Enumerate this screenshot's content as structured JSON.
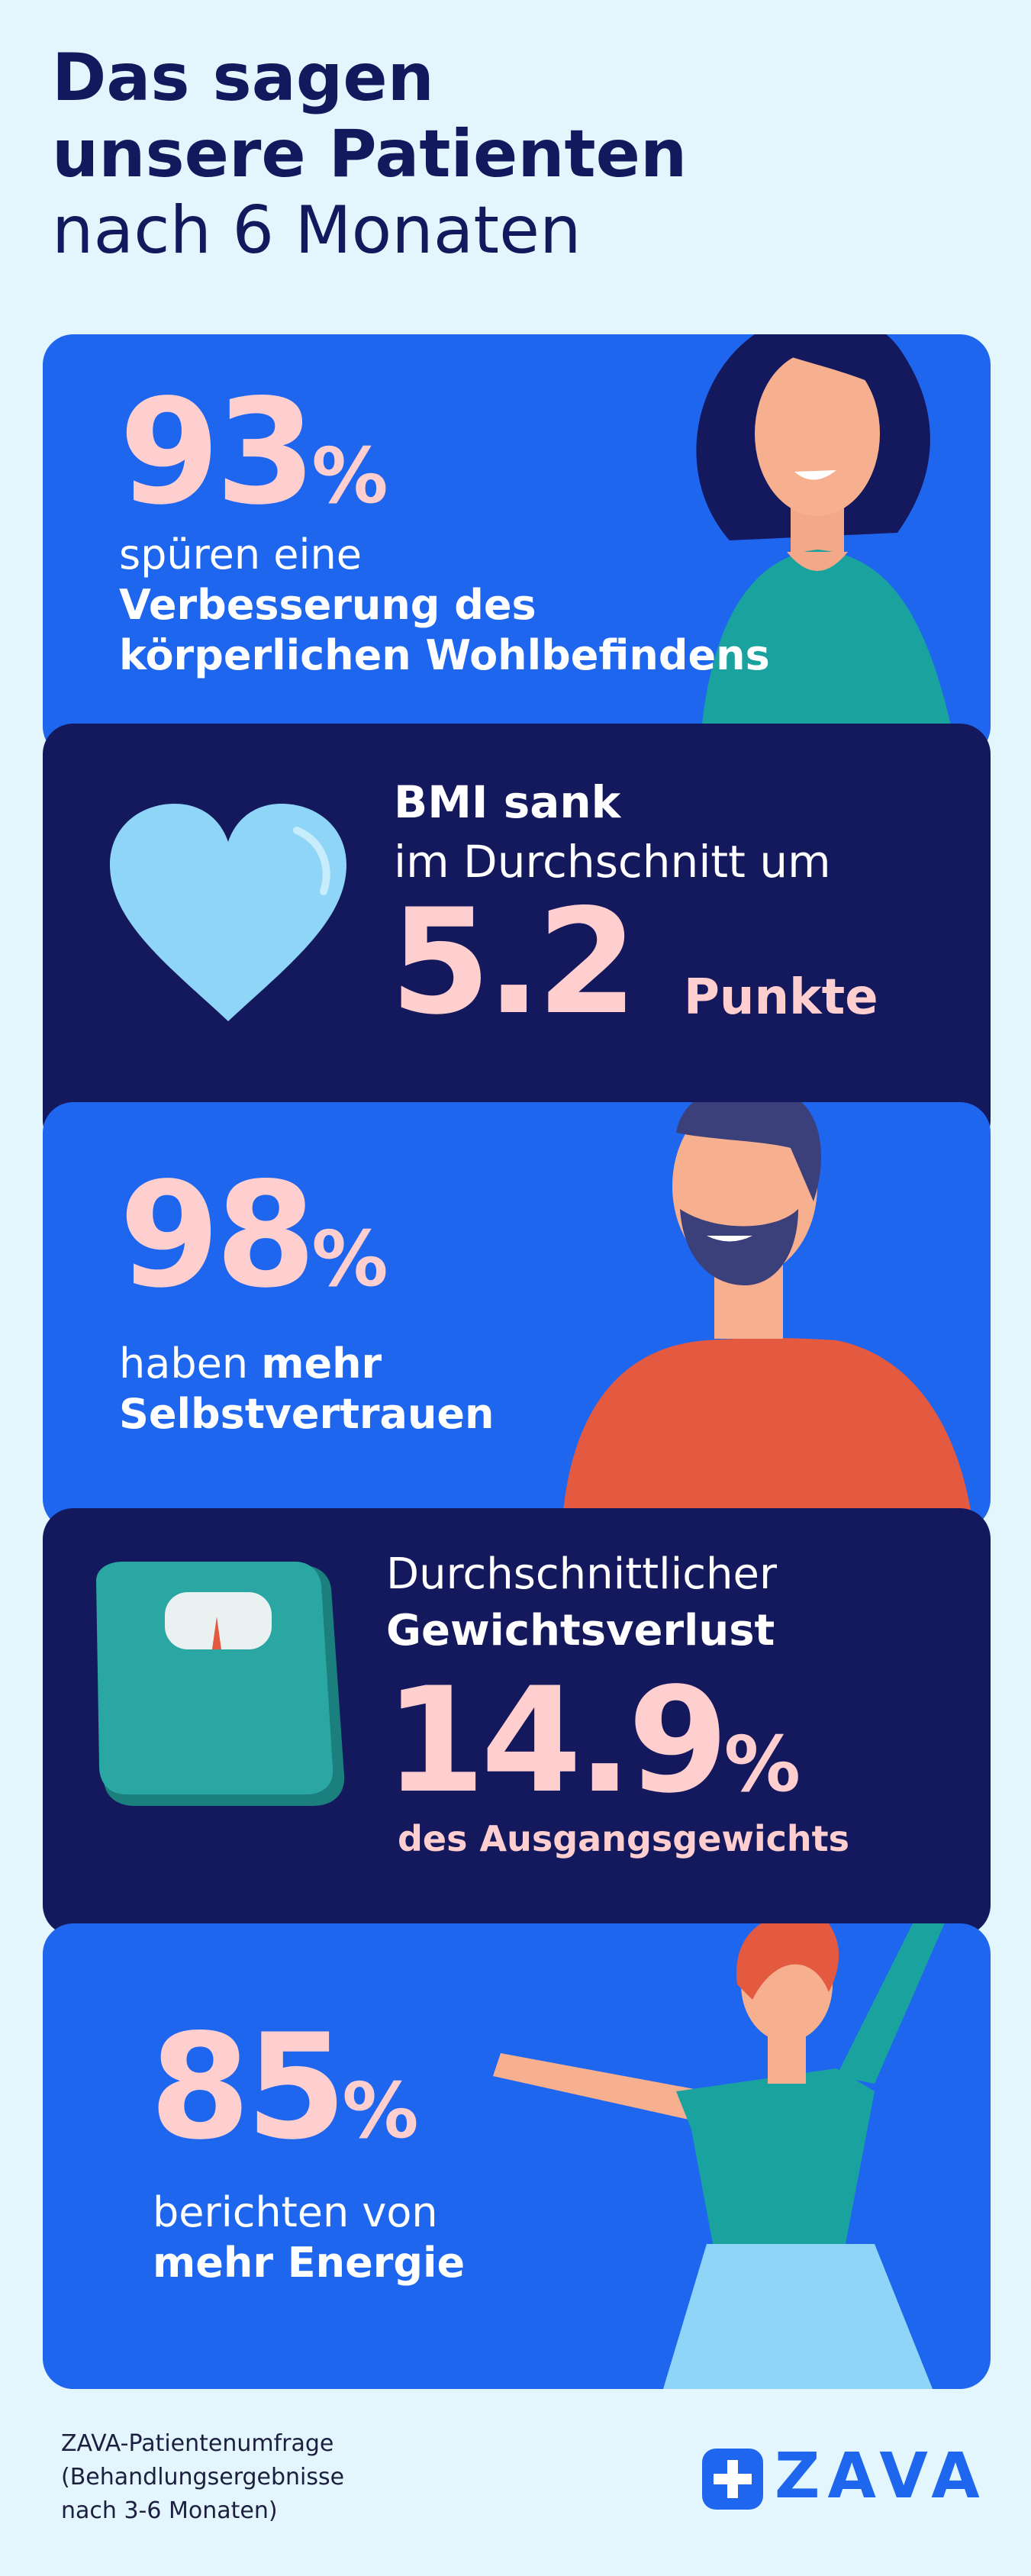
{
  "title": {
    "line1": "Das sagen",
    "line2": "unsere Patienten",
    "line3": "nach 6 Monaten"
  },
  "stat1": {
    "value": "93",
    "unit": "%",
    "text": "spüren eine",
    "bold_line1": "Verbesserung des",
    "bold_line2": "körperlichen Wohlbefindens"
  },
  "stat2": {
    "bold": "BMI sank",
    "text": "im Durchschnitt um",
    "value": "5.2",
    "unit": "Punkte"
  },
  "stat3": {
    "value": "98",
    "unit": "%",
    "text": "haben",
    "bold_word": "mehr",
    "bold_line2": "Selbstvertrauen"
  },
  "stat4": {
    "text": "Durchschnittlicher",
    "bold": "Gewichtsverlust",
    "value": "14.9",
    "unit": "%",
    "sub": "des Ausgangsgewichts"
  },
  "stat5": {
    "value": "85",
    "unit": "%",
    "text": "berichten von",
    "bold": "mehr Energie"
  },
  "footer": {
    "line1": "ZAVA-Patientenumfrage",
    "line2": "(Behandlungsergebnisse",
    "line3": "nach 3-6 Monaten)"
  },
  "logo": {
    "text": "ZAVA",
    "icon": "plus-cross-icon"
  },
  "colors": {
    "background": "#e3f5fd",
    "blue": "#1f66ef",
    "navy": "#14185c",
    "pink": "#ffcfcf",
    "teal": "#1aa39e",
    "red": "#e35a40"
  }
}
